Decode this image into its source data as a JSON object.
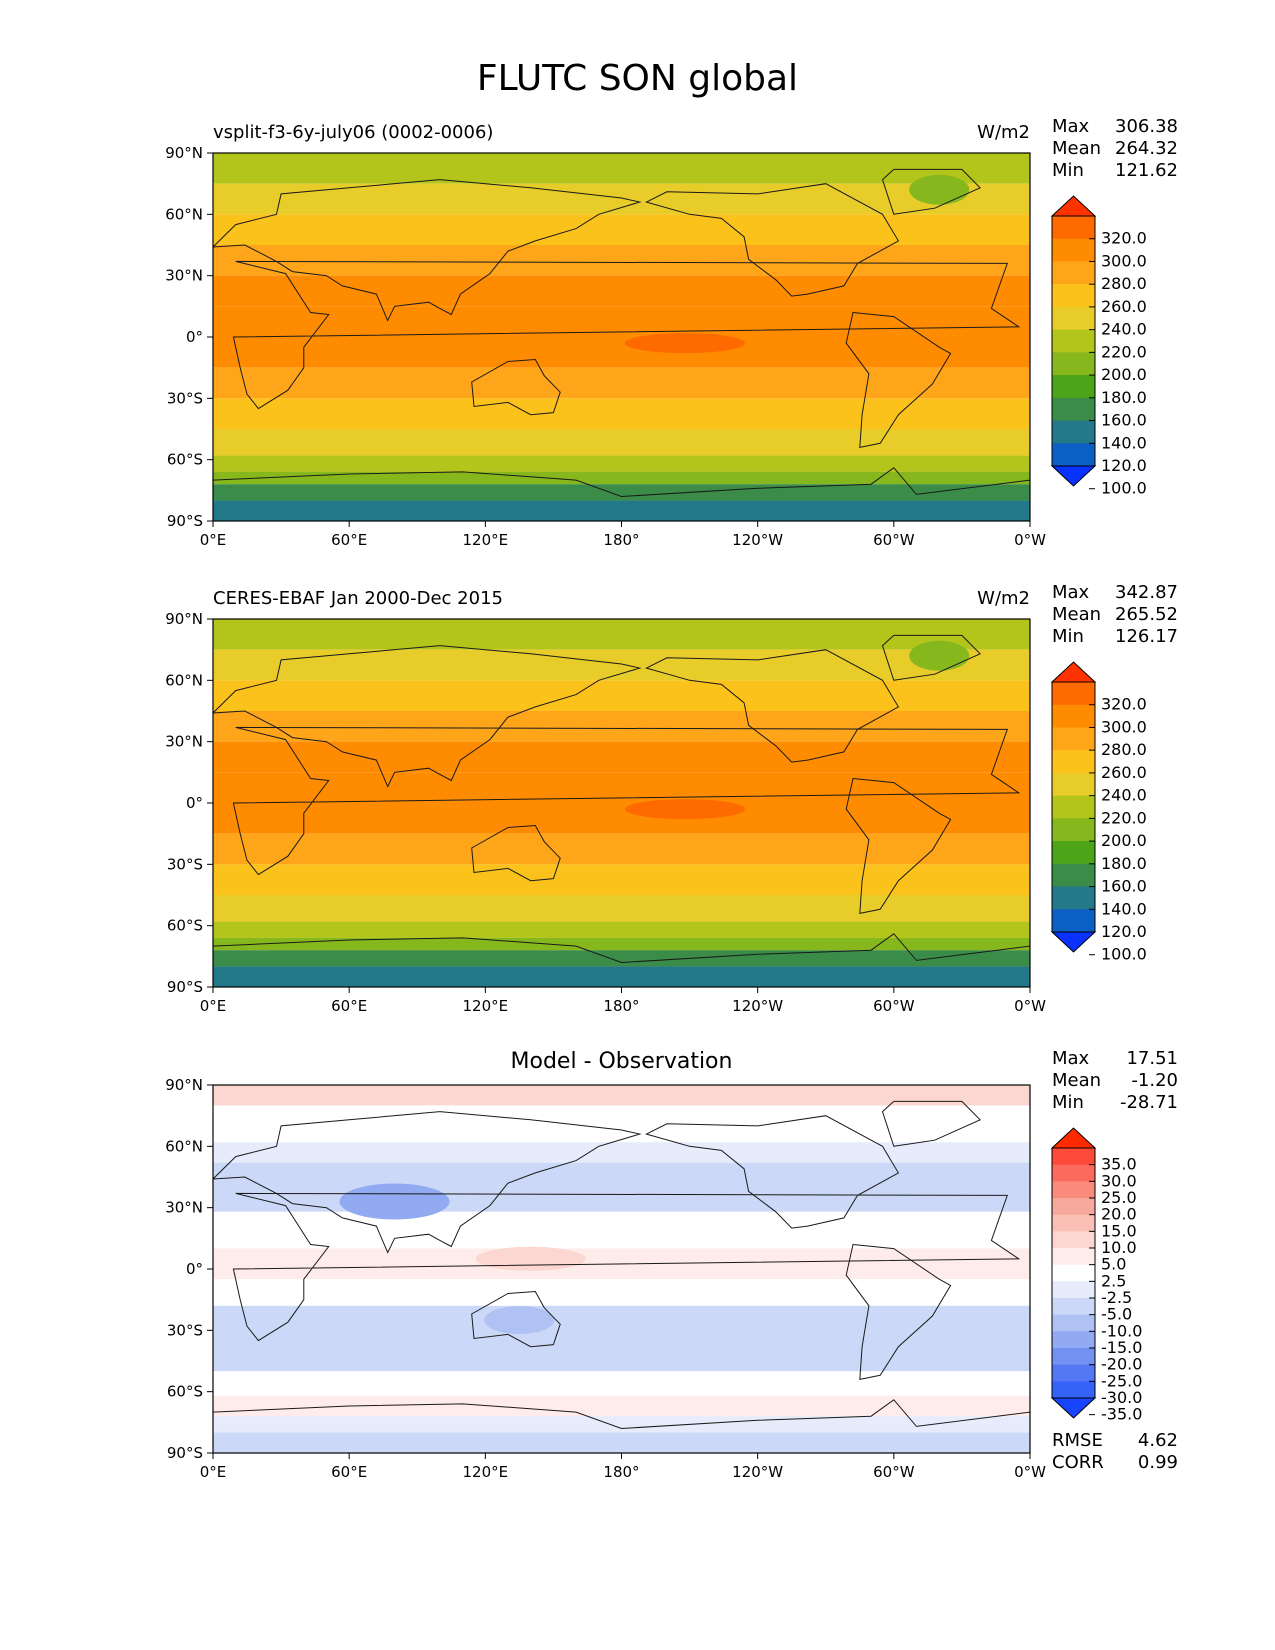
{
  "title": "FLUTC SON global",
  "chart_data": [
    {
      "type": "heatmap",
      "title_left": "vsplit-f3-6y-july06 (0002-0006)",
      "units": "W/m2",
      "stats": [
        {
          "label": "Max",
          "value": "306.38"
        },
        {
          "label": "Mean",
          "value": "264.32"
        },
        {
          "label": "Min",
          "value": "121.62"
        }
      ],
      "xticks": [
        "0°E",
        "60°E",
        "120°E",
        "180°",
        "120°W",
        "60°W",
        "0°W"
      ],
      "yticks": [
        "90°N",
        "60°N",
        "30°N",
        "0°",
        "30°S",
        "60°S",
        "90°S"
      ],
      "xlim": [
        0,
        360
      ],
      "ylim": [
        -90,
        90
      ],
      "colorbar_levels": [
        "320.0",
        "300.0",
        "280.0",
        "260.0",
        "240.0",
        "220.0",
        "200.0",
        "180.0",
        "160.0",
        "140.0",
        "120.0",
        "100.0"
      ],
      "colorbar_colors": [
        "#ff3300",
        "#ff6a00",
        "#ff8c00",
        "#ffa51a",
        "#fcc21c",
        "#e7cc2a",
        "#b3c41b",
        "#86b81e",
        "#4ca519",
        "#3a8c48",
        "#23788a",
        "#0c5fc4",
        "#0a32ff"
      ]
    },
    {
      "type": "heatmap",
      "title_left": "CERES-EBAF Jan 2000-Dec 2015",
      "units": "W/m2",
      "stats": [
        {
          "label": "Max",
          "value": "342.87"
        },
        {
          "label": "Mean",
          "value": "265.52"
        },
        {
          "label": "Min",
          "value": "126.17"
        }
      ],
      "xticks": [
        "0°E",
        "60°E",
        "120°E",
        "180°",
        "120°W",
        "60°W",
        "0°W"
      ],
      "yticks": [
        "90°N",
        "60°N",
        "30°N",
        "0°",
        "30°S",
        "60°S",
        "90°S"
      ],
      "xlim": [
        0,
        360
      ],
      "ylim": [
        -90,
        90
      ],
      "colorbar_levels": [
        "320.0",
        "300.0",
        "280.0",
        "260.0",
        "240.0",
        "220.0",
        "200.0",
        "180.0",
        "160.0",
        "140.0",
        "120.0",
        "100.0"
      ],
      "colorbar_colors": [
        "#ff3300",
        "#ff6a00",
        "#ff8c00",
        "#ffa51a",
        "#fcc21c",
        "#e7cc2a",
        "#b3c41b",
        "#86b81e",
        "#4ca519",
        "#3a8c48",
        "#23788a",
        "#0c5fc4",
        "#0a32ff"
      ]
    },
    {
      "type": "heatmap",
      "title_center": "Model - Observation",
      "stats": [
        {
          "label": "Max",
          "value": "17.51"
        },
        {
          "label": "Mean",
          "value": "-1.20"
        },
        {
          "label": "Min",
          "value": "-28.71"
        }
      ],
      "extra_stats": [
        {
          "label": "RMSE",
          "value": "4.62"
        },
        {
          "label": "CORR",
          "value": "0.99"
        }
      ],
      "xticks": [
        "0°E",
        "60°E",
        "120°E",
        "180°",
        "120°W",
        "60°W",
        "0°W"
      ],
      "yticks": [
        "90°N",
        "60°N",
        "30°N",
        "0°",
        "30°S",
        "60°S",
        "90°S"
      ],
      "xlim": [
        0,
        360
      ],
      "ylim": [
        -90,
        90
      ],
      "colorbar_levels": [
        "35.0",
        "30.0",
        "25.0",
        "20.0",
        "15.0",
        "10.0",
        "5.0",
        "2.5",
        "-2.5",
        "-5.0",
        "-10.0",
        "-15.0",
        "-20.0",
        "-25.0",
        "-30.0",
        "-35.0"
      ],
      "colorbar_colors": [
        "#ff2a00",
        "#fe4a3a",
        "#fb6a5c",
        "#f98a7c",
        "#f8a89c",
        "#fac0b6",
        "#fcd6d0",
        "#feecea",
        "#ffffff",
        "#e6ecfb",
        "#ccd8f7",
        "#b0c2f4",
        "#92aaf2",
        "#7391f1",
        "#5478f3",
        "#3563f7",
        "#1744ff"
      ]
    }
  ]
}
